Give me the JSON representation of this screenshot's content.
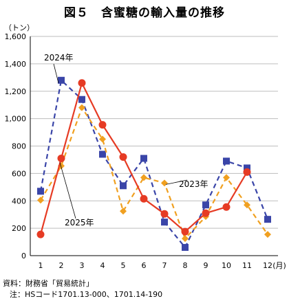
{
  "title": "図５　含蜜糖の輸入量の推移",
  "source": "資料：財務省「貿易統計」",
  "note": "注：HSコード1701.13-000、1701.14-190",
  "chart_data": {
    "type": "line",
    "ylabel": "（トン）",
    "xunit": "(月)",
    "categories": [
      "1",
      "2",
      "3",
      "4",
      "5",
      "6",
      "7",
      "8",
      "9",
      "10",
      "11",
      "12"
    ],
    "ylim": [
      0,
      1600
    ],
    "yticks": [
      0,
      200,
      400,
      600,
      800,
      1000,
      1200,
      1400,
      1600
    ],
    "ytick_labels": [
      "0",
      "200",
      "400",
      "600",
      "800",
      "1,000",
      "1,200",
      "1,400",
      "1,600"
    ],
    "grid": true,
    "series": [
      {
        "name": "2024年",
        "color": "#3a45a8",
        "line": "dashed",
        "marker": "square",
        "values": [
          470,
          1280,
          1140,
          740,
          510,
          710,
          245,
          60,
          370,
          690,
          640,
          265
        ]
      },
      {
        "name": "2023年",
        "color": "#f0a020",
        "line": "dashed",
        "marker": "diamond",
        "values": [
          405,
          655,
          1080,
          850,
          325,
          570,
          530,
          125,
          285,
          570,
          370,
          155
        ]
      },
      {
        "name": "2025年",
        "color": "#e63b24",
        "line": "solid",
        "marker": "circle",
        "values": [
          155,
          710,
          1260,
          955,
          720,
          415,
          305,
          175,
          310,
          355,
          610,
          null
        ]
      }
    ]
  }
}
